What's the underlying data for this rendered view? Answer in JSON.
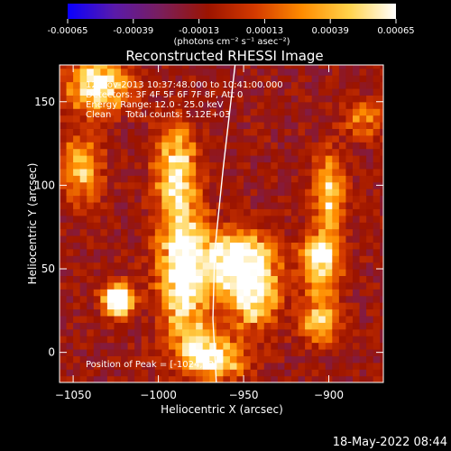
{
  "colors": {
    "background": "#000000",
    "foreground": "#ffffff",
    "limb": "#ffffff"
  },
  "colorbar": {
    "ticks": [
      "-0.00065",
      "-0.00039",
      "-0.00013",
      "0.00013",
      "0.00039",
      "0.00065"
    ],
    "units_label": "(photons cm⁻² s⁻¹ asec⁻²)",
    "colormap": [
      "#0a00ff",
      "#5a1aaa",
      "#7a1e5a",
      "#9c1400",
      "#d43a00",
      "#ff8c00",
      "#ffd24a",
      "#ffffff"
    ]
  },
  "chart_data": {
    "type": "heatmap",
    "title": "Reconstructed RHESSI Image",
    "xlabel": "Heliocentric X (arcsec)",
    "ylabel": "Heliocentric Y (arcsec)",
    "xlim": [
      -1058,
      -868
    ],
    "ylim": [
      -18,
      172
    ],
    "x_ticks": [
      -1050,
      -1000,
      -950,
      -900
    ],
    "x_tick_labels": [
      "−1050",
      "−1000",
      "−950",
      "−900"
    ],
    "y_ticks": [
      0,
      50,
      100,
      150
    ],
    "y_tick_labels": [
      "0",
      "50",
      "100",
      "150"
    ],
    "info_lines": [
      "12-Nov-2013 10:37:48.000 to 10:41:00.000",
      "Detectors: 3F 4F 5F 6F 7F 8F, Att 0",
      "Energy Range: 12.0 - 25.0 keV",
      "Clean     Total counts: 5.12E+03"
    ],
    "peak_label": "Position of Peak = [-1024,32]",
    "peak": [
      -1024,
      32
    ],
    "sources": [
      {
        "x": -1024,
        "y": 32,
        "amp": 1.0,
        "sx": 6,
        "sy": 6
      },
      {
        "x": -985,
        "y": 50,
        "amp": 0.75,
        "sx": 10,
        "sy": 28
      },
      {
        "x": -990,
        "y": 110,
        "amp": 0.55,
        "sx": 8,
        "sy": 18
      },
      {
        "x": -1035,
        "y": 160,
        "amp": 0.7,
        "sx": 12,
        "sy": 10
      },
      {
        "x": -1045,
        "y": 110,
        "amp": 0.45,
        "sx": 8,
        "sy": 14
      },
      {
        "x": -955,
        "y": 55,
        "amp": 0.7,
        "sx": 14,
        "sy": 12
      },
      {
        "x": -945,
        "y": 35,
        "amp": 0.6,
        "sx": 10,
        "sy": 14
      },
      {
        "x": -905,
        "y": 55,
        "amp": 0.6,
        "sx": 8,
        "sy": 12
      },
      {
        "x": -900,
        "y": 95,
        "amp": 0.55,
        "sx": 6,
        "sy": 16
      },
      {
        "x": -905,
        "y": 20,
        "amp": 0.45,
        "sx": 8,
        "sy": 10
      },
      {
        "x": -965,
        "y": -5,
        "amp": 0.5,
        "sx": 12,
        "sy": 8
      },
      {
        "x": -975,
        "y": 5,
        "amp": 0.4,
        "sx": 8,
        "sy": 8
      },
      {
        "x": -880,
        "y": 140,
        "amp": 0.3,
        "sx": 8,
        "sy": 8
      }
    ],
    "limb": [
      [
        -966,
        -18
      ],
      [
        -968,
        20
      ],
      [
        -967,
        60
      ],
      [
        -962,
        110
      ],
      [
        -955,
        172
      ]
    ]
  },
  "timestamp": "18-May-2022 08:44"
}
